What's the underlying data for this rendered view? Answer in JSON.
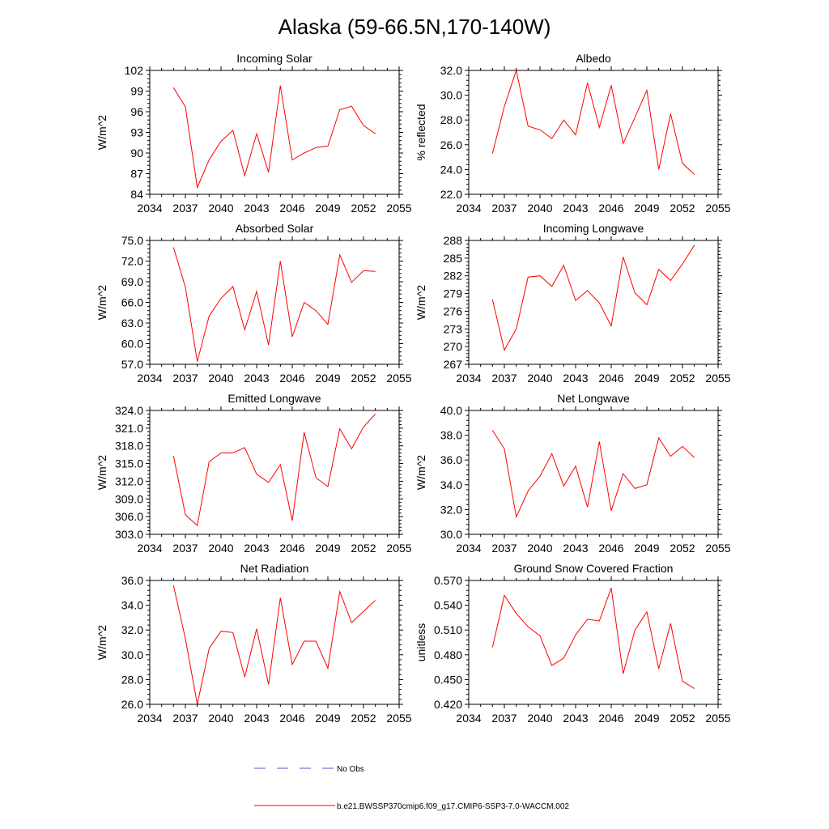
{
  "figure": {
    "title": "Alaska (59-66.5N,170-140W)",
    "line_color": "#ff0000",
    "obs_color": "#5555cc",
    "legend": [
      {
        "label": "No Obs",
        "style": "dashed"
      },
      {
        "label": "b.e21.BWSSP370cmip6.f09_g17.CMIP6-SSP3-7.0-WACCM.002",
        "style": "solid"
      }
    ]
  },
  "chart_data": [
    {
      "type": "line",
      "title": "Incoming Solar",
      "xlabel": "",
      "ylabel": "W/m^2",
      "xlim": [
        2034,
        2055
      ],
      "xticks": [
        "2034",
        "2037",
        "2040",
        "2043",
        "2046",
        "2049",
        "2052",
        "2055"
      ],
      "ylim": [
        84,
        102
      ],
      "yticks": [
        "84",
        "87",
        "90",
        "93",
        "96",
        "99",
        "102"
      ],
      "series": [
        {
          "name": "b.e21.BWSSP370cmip6.f09_g17.CMIP6-SSP3-7.0-WACCM.002",
          "x": [
            2036,
            2037,
            2038,
            2039,
            2040,
            2041,
            2042,
            2043,
            2044,
            2045,
            2046,
            2047,
            2048,
            2049,
            2050,
            2051,
            2052,
            2053
          ],
          "values": [
            99.5,
            96.7,
            85.0,
            89.0,
            91.7,
            93.3,
            86.7,
            92.8,
            87.2,
            99.8,
            89.0,
            90.0,
            90.8,
            91.0,
            96.3,
            96.8,
            94.0,
            92.8
          ]
        }
      ]
    },
    {
      "type": "line",
      "title": "Albedo",
      "xlabel": "",
      "ylabel": "% reflected",
      "xlim": [
        2034,
        2055
      ],
      "xticks": [
        "2034",
        "2037",
        "2040",
        "2043",
        "2046",
        "2049",
        "2052",
        "2055"
      ],
      "ylim": [
        22,
        32
      ],
      "yticks": [
        "22.0",
        "24.0",
        "26.0",
        "28.0",
        "30.0",
        "32.0"
      ],
      "series": [
        {
          "name": "b.e21.BWSSP370cmip6.f09_g17.CMIP6-SSP3-7.0-WACCM.002",
          "x": [
            2036,
            2037,
            2038,
            2039,
            2040,
            2041,
            2042,
            2043,
            2044,
            2045,
            2046,
            2047,
            2048,
            2049,
            2050,
            2051,
            2052,
            2053
          ],
          "values": [
            25.3,
            29.1,
            32.0,
            27.5,
            27.2,
            26.5,
            28.0,
            26.8,
            31.0,
            27.4,
            30.8,
            26.1,
            28.2,
            30.4,
            24.0,
            28.5,
            24.5,
            23.6
          ]
        }
      ]
    },
    {
      "type": "line",
      "title": "Absorbed Solar",
      "xlabel": "",
      "ylabel": "W/m^2",
      "xlim": [
        2034,
        2055
      ],
      "xticks": [
        "2034",
        "2037",
        "2040",
        "2043",
        "2046",
        "2049",
        "2052",
        "2055"
      ],
      "ylim": [
        57,
        75
      ],
      "yticks": [
        "57.0",
        "60.0",
        "63.0",
        "66.0",
        "69.0",
        "72.0",
        "75.0"
      ],
      "series": [
        {
          "name": "b.e21.BWSSP370cmip6.f09_g17.CMIP6-SSP3-7.0-WACCM.002",
          "x": [
            2036,
            2037,
            2038,
            2039,
            2040,
            2041,
            2042,
            2043,
            2044,
            2045,
            2046,
            2047,
            2048,
            2049,
            2050,
            2051,
            2052,
            2053
          ],
          "values": [
            74.0,
            68.2,
            57.4,
            64.0,
            66.6,
            68.3,
            62.0,
            67.6,
            59.8,
            72.0,
            61.0,
            66.0,
            64.8,
            62.8,
            72.9,
            68.9,
            70.6,
            70.5
          ]
        }
      ]
    },
    {
      "type": "line",
      "title": "Incoming Longwave",
      "xlabel": "",
      "ylabel": "W/m^2",
      "xlim": [
        2034,
        2055
      ],
      "xticks": [
        "2034",
        "2037",
        "2040",
        "2043",
        "2046",
        "2049",
        "2052",
        "2055"
      ],
      "ylim": [
        267,
        288
      ],
      "yticks": [
        "267",
        "270",
        "273",
        "276",
        "279",
        "282",
        "285",
        "288"
      ],
      "series": [
        {
          "name": "b.e21.BWSSP370cmip6.f09_g17.CMIP6-SSP3-7.0-WACCM.002",
          "x": [
            2036,
            2037,
            2038,
            2039,
            2040,
            2041,
            2042,
            2043,
            2044,
            2045,
            2046,
            2047,
            2048,
            2049,
            2050,
            2051,
            2052,
            2053
          ],
          "values": [
            278.0,
            269.4,
            273.0,
            281.8,
            282.0,
            280.2,
            283.8,
            277.8,
            279.5,
            277.4,
            273.5,
            285.2,
            279.1,
            277.1,
            283.1,
            281.2,
            284.0,
            287.2
          ]
        }
      ]
    },
    {
      "type": "line",
      "title": "Emitted Longwave",
      "xlabel": "",
      "ylabel": "W/m^2",
      "xlim": [
        2034,
        2055
      ],
      "xticks": [
        "2034",
        "2037",
        "2040",
        "2043",
        "2046",
        "2049",
        "2052",
        "2055"
      ],
      "ylim": [
        303,
        324
      ],
      "yticks": [
        "303.0",
        "306.0",
        "309.0",
        "312.0",
        "315.0",
        "318.0",
        "321.0",
        "324.0"
      ],
      "series": [
        {
          "name": "b.e21.BWSSP370cmip6.f09_g17.CMIP6-SSP3-7.0-WACCM.002",
          "x": [
            2036,
            2037,
            2038,
            2039,
            2040,
            2041,
            2042,
            2043,
            2044,
            2045,
            2046,
            2047,
            2048,
            2049,
            2050,
            2051,
            2052,
            2053
          ],
          "values": [
            316.3,
            306.3,
            304.5,
            315.3,
            316.8,
            316.8,
            317.7,
            313.2,
            311.8,
            314.8,
            305.3,
            320.3,
            312.6,
            311.1,
            320.9,
            317.5,
            321.2,
            323.4
          ]
        }
      ]
    },
    {
      "type": "line",
      "title": "Net Longwave",
      "xlabel": "",
      "ylabel": "W/m^2",
      "xlim": [
        2034,
        2055
      ],
      "xticks": [
        "2034",
        "2037",
        "2040",
        "2043",
        "2046",
        "2049",
        "2052",
        "2055"
      ],
      "ylim": [
        30,
        40
      ],
      "yticks": [
        "30.0",
        "32.0",
        "34.0",
        "36.0",
        "38.0",
        "40.0"
      ],
      "series": [
        {
          "name": "b.e21.BWSSP370cmip6.f09_g17.CMIP6-SSP3-7.0-WACCM.002",
          "x": [
            2036,
            2037,
            2038,
            2039,
            2040,
            2041,
            2042,
            2043,
            2044,
            2045,
            2046,
            2047,
            2048,
            2049,
            2050,
            2051,
            2052,
            2053
          ],
          "values": [
            38.4,
            36.9,
            31.4,
            33.5,
            34.7,
            36.5,
            33.9,
            35.5,
            32.2,
            37.5,
            31.9,
            34.9,
            33.7,
            34.0,
            37.8,
            36.3,
            37.1,
            36.2
          ]
        }
      ]
    },
    {
      "type": "line",
      "title": "Net Radiation",
      "xlabel": "",
      "ylabel": "W/m^2",
      "xlim": [
        2034,
        2055
      ],
      "xticks": [
        "2034",
        "2037",
        "2040",
        "2043",
        "2046",
        "2049",
        "2052",
        "2055"
      ],
      "ylim": [
        26,
        36
      ],
      "yticks": [
        "26.0",
        "28.0",
        "30.0",
        "32.0",
        "34.0",
        "36.0"
      ],
      "series": [
        {
          "name": "b.e21.BWSSP370cmip6.f09_g17.CMIP6-SSP3-7.0-WACCM.002",
          "x": [
            2036,
            2037,
            2038,
            2039,
            2040,
            2041,
            2042,
            2043,
            2044,
            2045,
            2046,
            2047,
            2048,
            2049,
            2050,
            2051,
            2052,
            2053
          ],
          "values": [
            35.6,
            31.3,
            26.0,
            30.5,
            31.9,
            31.8,
            28.2,
            32.1,
            27.6,
            34.6,
            29.2,
            31.1,
            31.1,
            28.9,
            35.1,
            32.6,
            33.5,
            34.4
          ]
        }
      ]
    },
    {
      "type": "line",
      "title": "Ground Snow Covered Fraction",
      "xlabel": "",
      "ylabel": "unitless",
      "xlim": [
        2034,
        2055
      ],
      "xticks": [
        "2034",
        "2037",
        "2040",
        "2043",
        "2046",
        "2049",
        "2052",
        "2055"
      ],
      "ylim": [
        0.42,
        0.57
      ],
      "yticks": [
        "0.420",
        "0.450",
        "0.480",
        "0.510",
        "0.540",
        "0.570"
      ],
      "series": [
        {
          "name": "b.e21.BWSSP370cmip6.f09_g17.CMIP6-SSP3-7.0-WACCM.002",
          "x": [
            2036,
            2037,
            2038,
            2039,
            2040,
            2041,
            2042,
            2043,
            2044,
            2045,
            2046,
            2047,
            2048,
            2049,
            2050,
            2051,
            2052,
            2053
          ],
          "values": [
            0.489,
            0.552,
            0.53,
            0.514,
            0.503,
            0.467,
            0.476,
            0.504,
            0.523,
            0.521,
            0.561,
            0.457,
            0.51,
            0.532,
            0.463,
            0.518,
            0.448,
            0.439
          ]
        }
      ]
    }
  ]
}
